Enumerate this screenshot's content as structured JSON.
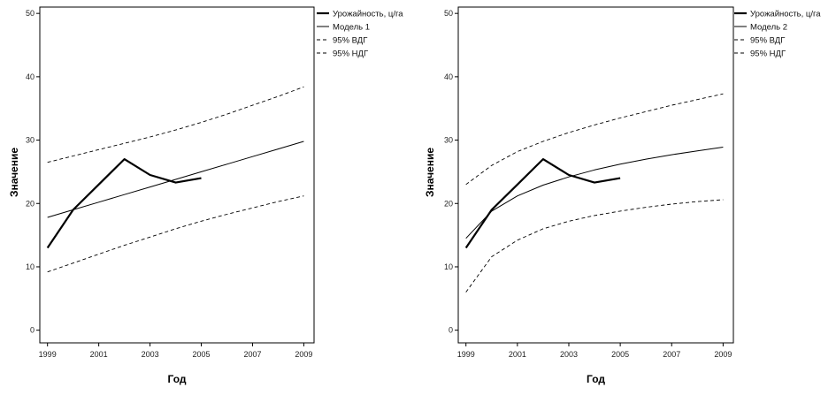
{
  "chart_data": [
    {
      "type": "line",
      "xlabel": "Год",
      "ylabel": "Значение",
      "xlim": [
        1998.7,
        2009.4
      ],
      "ylim": [
        -2,
        51
      ],
      "xticks": [
        1999,
        2001,
        2003,
        2005,
        2007,
        2009
      ],
      "yticks": [
        0,
        10,
        20,
        30,
        40,
        50
      ],
      "legend_position": "outside-top-right",
      "series": [
        {
          "name": "Урожайность, ц/га",
          "style": "solid-bold",
          "x": [
            1999,
            2000,
            2001,
            2002,
            2003,
            2004,
            2005
          ],
          "y": [
            13,
            19,
            23,
            27,
            24.5,
            23.3,
            24
          ]
        },
        {
          "name": "Модель 1",
          "style": "solid",
          "x": [
            1999,
            2000,
            2001,
            2002,
            2003,
            2004,
            2005,
            2006,
            2007,
            2008,
            2009
          ],
          "y": [
            17.8,
            19,
            20.2,
            21.4,
            22.6,
            23.8,
            25,
            26.2,
            27.4,
            28.6,
            29.8
          ]
        },
        {
          "name": "95% ВДГ",
          "style": "dashed",
          "x": [
            1999,
            2000,
            2001,
            2002,
            2003,
            2004,
            2005,
            2006,
            2007,
            2008,
            2009
          ],
          "y": [
            26.5,
            27.5,
            28.5,
            29.5,
            30.5,
            31.6,
            32.8,
            34.1,
            35.5,
            36.9,
            38.4
          ]
        },
        {
          "name": "95% НДГ",
          "style": "dashed",
          "x": [
            1999,
            2000,
            2001,
            2002,
            2003,
            2004,
            2005,
            2006,
            2007,
            2008,
            2009
          ],
          "y": [
            9.2,
            10.6,
            12,
            13.4,
            14.7,
            16,
            17.2,
            18.3,
            19.3,
            20.3,
            21.2
          ]
        }
      ]
    },
    {
      "type": "line",
      "xlabel": "Год",
      "ylabel": "Значение",
      "xlim": [
        1998.7,
        2009.4
      ],
      "ylim": [
        -2,
        51
      ],
      "xticks": [
        1999,
        2001,
        2003,
        2005,
        2007,
        2009
      ],
      "yticks": [
        0,
        10,
        20,
        30,
        40,
        50
      ],
      "legend_position": "outside-top-right",
      "series": [
        {
          "name": "Урожайность, ц/га",
          "style": "solid-bold",
          "x": [
            1999,
            2000,
            2001,
            2002,
            2003,
            2004,
            2005
          ],
          "y": [
            13,
            19,
            23,
            27,
            24.5,
            23.3,
            24
          ]
        },
        {
          "name": "Модель 2",
          "style": "solid",
          "x": [
            1999,
            2000,
            2001,
            2002,
            2003,
            2004,
            2005,
            2006,
            2007,
            2008,
            2009
          ],
          "y": [
            14.5,
            18.8,
            21.2,
            22.9,
            24.2,
            25.3,
            26.2,
            27,
            27.7,
            28.3,
            28.9
          ]
        },
        {
          "name": "95% ВДГ",
          "style": "dashed",
          "x": [
            1999,
            2000,
            2001,
            2002,
            2003,
            2004,
            2005,
            2006,
            2007,
            2008,
            2009
          ],
          "y": [
            23,
            26,
            28.2,
            29.8,
            31.2,
            32.4,
            33.5,
            34.5,
            35.5,
            36.4,
            37.3
          ]
        },
        {
          "name": "95% НДГ",
          "style": "dashed",
          "x": [
            1999,
            2000,
            2001,
            2002,
            2003,
            2004,
            2005,
            2006,
            2007,
            2008,
            2009
          ],
          "y": [
            6,
            11.6,
            14.2,
            16,
            17.2,
            18.1,
            18.8,
            19.4,
            19.9,
            20.3,
            20.6
          ]
        }
      ]
    }
  ]
}
